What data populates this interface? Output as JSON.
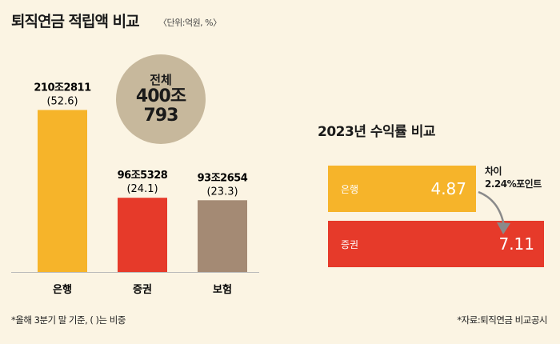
{
  "header": {
    "title": "퇴직연금 적립액 비교",
    "unit": "〈단위:억원, %〉"
  },
  "total": {
    "label": "전체",
    "value": "400조 793"
  },
  "colors": {
    "bank": "#f6b42a",
    "securities": "#e63a2a",
    "insurance": "#a48a74",
    "circle": "#c7b89c",
    "arrow": "#8a8a8a"
  },
  "chart_data": [
    {
      "type": "bar",
      "categories": [
        "은행",
        "증권",
        "보험"
      ],
      "values": [
        52.6,
        24.1,
        23.3
      ],
      "amounts": [
        "210조2811",
        "96조5328",
        "93조2654"
      ],
      "value_labels": [
        "(52.6)",
        "(24.1)",
        "(23.3)"
      ],
      "title": "",
      "xlabel": "",
      "ylabel": ""
    },
    {
      "type": "bar",
      "orientation": "horizontal",
      "title": "2023년 수익률 비교",
      "categories": [
        "은행",
        "증권"
      ],
      "values": [
        4.87,
        7.11
      ],
      "value_labels": [
        "4.87",
        "7.11"
      ],
      "annotation": "차이 2.24%포인트"
    }
  ],
  "annotation": {
    "line1": "차이",
    "line2": "2.24%포인트"
  },
  "footnotes": {
    "left": "*올해 3분기 말 기준, (  )는 비중",
    "right": "*자료:퇴직연금 비교공시"
  }
}
